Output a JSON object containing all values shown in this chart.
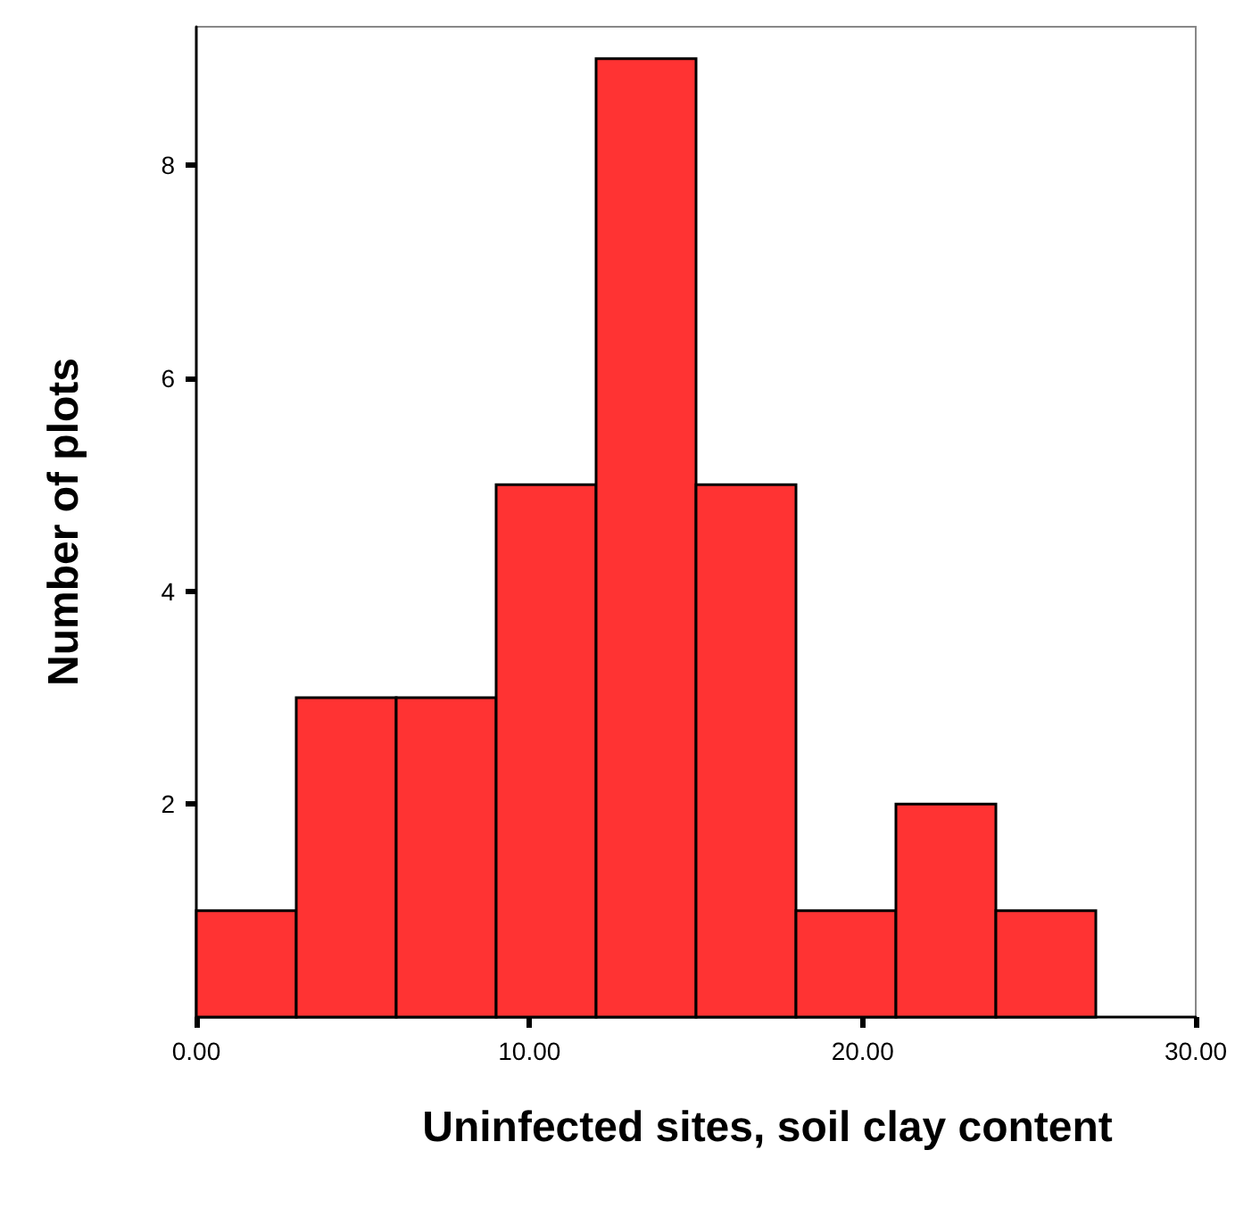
{
  "chart_data": {
    "type": "histogram",
    "xlabel": "Uninfected sites, soil clay content",
    "ylabel": "Number of plots",
    "bins": [
      0,
      3,
      6,
      9,
      12,
      15,
      18,
      21,
      24,
      27
    ],
    "values": [
      1,
      3,
      3,
      5,
      9,
      5,
      1,
      2,
      1
    ],
    "color": "#ff3333",
    "xlim": [
      0,
      30
    ],
    "xticks": [
      {
        "value": 0,
        "label": "0.00"
      },
      {
        "value": 10,
        "label": "10.00"
      },
      {
        "value": 20,
        "label": "20.00"
      },
      {
        "value": 30,
        "label": "30.00"
      }
    ],
    "ylim": [
      0,
      9.3
    ],
    "yticks": [
      2,
      4,
      6,
      8
    ],
    "grid": false
  }
}
